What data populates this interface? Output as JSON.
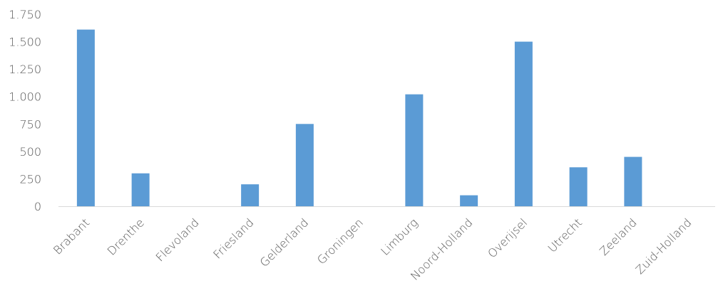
{
  "chart_data": {
    "type": "bar",
    "title": "",
    "xlabel": "",
    "ylabel": "",
    "categories": [
      "Brabant",
      "Drenthe",
      "Flevoland",
      "Friesland",
      "Gelderland",
      "Groningen",
      "Limburg",
      "Noord-Holland",
      "Overijsel",
      "Utrecht",
      "Zeeland",
      "Zuid-Holland"
    ],
    "values": [
      1610,
      300,
      0,
      200,
      750,
      0,
      1020,
      100,
      1500,
      355,
      450,
      0
    ],
    "ylim": [
      0,
      1750
    ],
    "yticks": [
      0,
      250,
      500,
      750,
      1000,
      1250,
      1500,
      1750
    ],
    "ytick_labels": [
      "0",
      "250",
      "500",
      "750",
      "1.000",
      "1.250",
      "1.500",
      "1.750"
    ],
    "grid": false,
    "legend": "none",
    "bar_color": "#5B9BD5",
    "axis_color": "#D9D9D9",
    "label_color": "#595959"
  }
}
